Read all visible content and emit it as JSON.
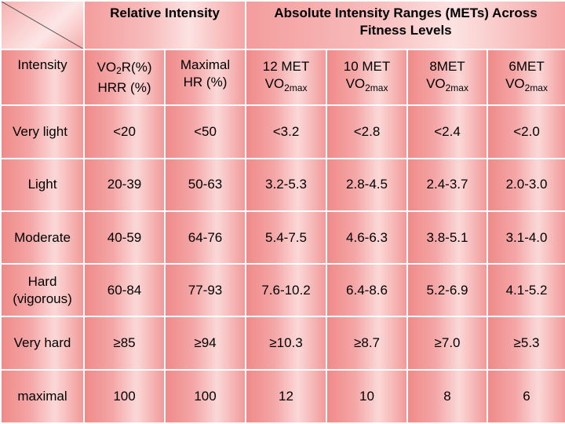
{
  "header": {
    "relative_intensity": "Relative Intensity",
    "absolute_intensity": "Absolute Intensity Ranges (METs) Across Fitness Levels"
  },
  "columns": {
    "intensity": "Intensity",
    "vo2r_prefix": "VO",
    "vo2r_sub": "2",
    "vo2r_suffix": "R(%)",
    "hrr": "HRR (%)",
    "max_hr_line1": "Maximal",
    "max_hr_line2": "HR (%)",
    "met12": "12 MET",
    "met10": "10 MET",
    "met8": "8MET",
    "met6": "6MET",
    "vo2_base": "VO",
    "vo2_sub": "2max"
  },
  "rows": [
    {
      "intensity": "Very light",
      "vo2r": "<20",
      "maxhr": "<50",
      "m12": "<3.2",
      "m10": "<2.8",
      "m8": "<2.4",
      "m6": "<2.0"
    },
    {
      "intensity": "Light",
      "vo2r": "20-39",
      "maxhr": "50-63",
      "m12": "3.2-5.3",
      "m10": "2.8-4.5",
      "m8": "2.4-3.7",
      "m6": "2.0-3.0"
    },
    {
      "intensity": "Moderate",
      "vo2r": "40-59",
      "maxhr": "64-76",
      "m12": "5.4-7.5",
      "m10": "4.6-6.3",
      "m8": "3.8-5.1",
      "m6": "3.1-4.0"
    },
    {
      "intensity_line1": "Hard",
      "intensity_line2": "(vigorous)",
      "vo2r": "60-84",
      "maxhr": "77-93",
      "m12": "7.6-10.2",
      "m10": "6.4-8.6",
      "m8": "5.2-6.9",
      "m6": "4.1-5.2"
    },
    {
      "intensity": "Very hard",
      "vo2r": "≥85",
      "maxhr": "≥94",
      "m12": "≥10.3",
      "m10": "≥8.7",
      "m8": "≥7.0",
      "m6": "≥5.3"
    },
    {
      "intensity": "maximal",
      "vo2r": "100",
      "maxhr": "100",
      "m12": "12",
      "m10": "10",
      "m8": "8",
      "m6": "6"
    }
  ],
  "colors": {
    "cell": "#f4a6a6",
    "border": "#ffffff"
  }
}
